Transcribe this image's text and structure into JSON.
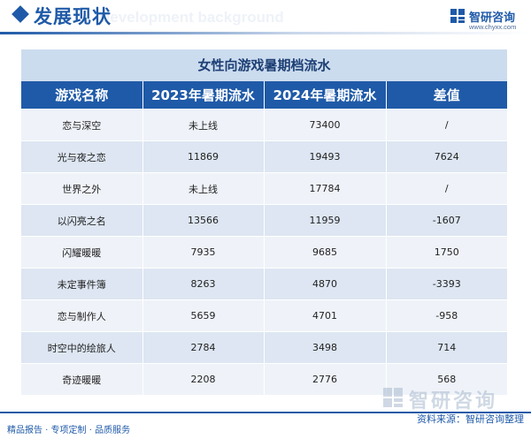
{
  "header": {
    "title": "发展现状",
    "bg_text": "Development background",
    "brand_name": "智研咨询",
    "brand_url": "www.chyxx.com"
  },
  "table": {
    "title": "女性向游戏暑期档流水",
    "columns": [
      "游戏名称",
      "2023年暑期流水",
      "2024年暑期流水",
      "差值"
    ],
    "rows": [
      [
        "恋与深空",
        "未上线",
        "73400",
        "/"
      ],
      [
        "光与夜之恋",
        "11869",
        "19493",
        "7624"
      ],
      [
        "世界之外",
        "未上线",
        "17784",
        "/"
      ],
      [
        "以闪亮之名",
        "13566",
        "11959",
        "-1607"
      ],
      [
        "闪耀暖暖",
        "7935",
        "9685",
        "1750"
      ],
      [
        "未定事件簿",
        "8263",
        "4870",
        "-3393"
      ],
      [
        "恋与制作人",
        "5659",
        "4701",
        "-958"
      ],
      [
        "时空中的绘旅人",
        "2784",
        "3498",
        "714"
      ],
      [
        "奇迹暖暖",
        "2208",
        "2776",
        "568"
      ]
    ]
  },
  "watermark": {
    "text": "智研咨询"
  },
  "footer": {
    "left": "精品报告 · 专项定制 · 品质服务",
    "right": "资料来源：智研咨询整理"
  },
  "colors": {
    "accent": "#1f5aa8",
    "title_band": "#ccdcef",
    "row_light": "#eff3f9",
    "row_dark": "#dde6f2"
  }
}
